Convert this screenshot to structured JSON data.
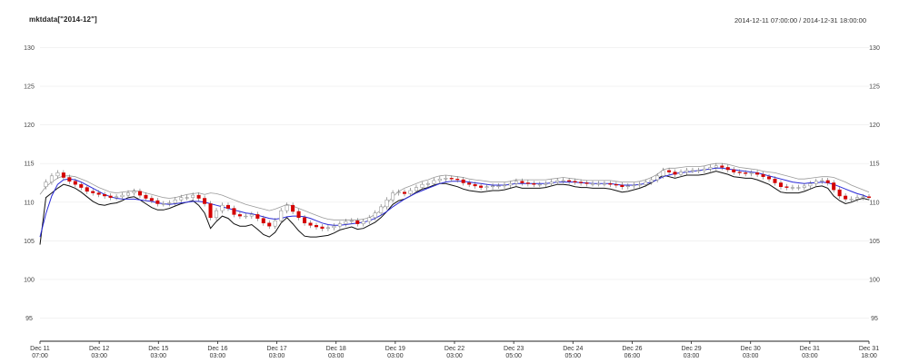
{
  "chart_data": {
    "type": "candlestick",
    "title": "mktdata[\"2014-12\"]",
    "date_range": "2014-12-11 07:00:00 / 2014-12-31 18:00:00",
    "ylim": [
      92,
      131
    ],
    "y_ticks": [
      95,
      100,
      105,
      110,
      115,
      120,
      125,
      130
    ],
    "x_ticks": [
      {
        "l1": "Dec 11",
        "l2": "07:00"
      },
      {
        "l1": "Dec 12",
        "l2": "03:00"
      },
      {
        "l1": "Dec 15",
        "l2": "03:00"
      },
      {
        "l1": "Dec 16",
        "l2": "03:00"
      },
      {
        "l1": "Dec 17",
        "l2": "03:00"
      },
      {
        "l1": "Dec 18",
        "l2": "03:00"
      },
      {
        "l1": "Dec 19",
        "l2": "03:00"
      },
      {
        "l1": "Dec 22",
        "l2": "03:00"
      },
      {
        "l1": "Dec 23",
        "l2": "05:00"
      },
      {
        "l1": "Dec 24",
        "l2": "05:00"
      },
      {
        "l1": "Dec 26",
        "l2": "06:00"
      },
      {
        "l1": "Dec 29",
        "l2": "03:00"
      },
      {
        "l1": "Dec 30",
        "l2": "03:00"
      },
      {
        "l1": "Dec 31",
        "l2": "03:00"
      },
      {
        "l1": "Dec 31",
        "l2": "18:00"
      }
    ],
    "close": [
      112,
      112.6,
      113.4,
      113.8,
      113.2,
      112.7,
      112.3,
      111.9,
      111.4,
      111.2,
      111.0,
      110.8,
      110.6,
      110.7,
      110.9,
      111.2,
      111.4,
      110.9,
      110.5,
      110.2,
      109.8,
      109.8,
      109.9,
      110.3,
      110.6,
      110.6,
      110.9,
      110.5,
      109.8,
      108.0,
      108.9,
      109.6,
      109.2,
      108.4,
      108.2,
      108.2,
      108.4,
      107.9,
      107.3,
      106.9,
      107.6,
      108.9,
      109.6,
      108.8,
      108.0,
      107.3,
      107.0,
      106.8,
      106.6,
      106.7,
      106.9,
      107.2,
      107.5,
      107.6,
      107.2,
      107.5,
      108.0,
      108.6,
      109.4,
      110.3,
      111.2,
      111.3,
      111.1,
      111.5,
      111.9,
      112.3,
      112.4,
      112.8,
      113.0,
      113.1,
      113.0,
      112.9,
      112.5,
      112.3,
      112.1,
      111.9,
      112.0,
      112.1,
      112.1,
      112.2,
      112.4,
      112.7,
      112.5,
      112.4,
      112.3,
      112.3,
      112.4,
      112.6,
      112.8,
      112.8,
      112.7,
      112.6,
      112.5,
      112.4,
      112.4,
      112.4,
      112.4,
      112.3,
      112.2,
      112.0,
      112.1,
      112.2,
      112.3,
      112.6,
      112.9,
      113.4,
      114.1,
      113.9,
      113.6,
      113.9,
      114.1,
      114.1,
      114.1,
      114.3,
      114.5,
      114.7,
      114.5,
      114.2,
      113.9,
      113.8,
      113.7,
      113.8,
      113.6,
      113.3,
      113.0,
      112.5,
      112.0,
      111.9,
      111.9,
      111.9,
      112.1,
      112.4,
      112.7,
      112.8,
      112.5,
      111.6,
      110.8,
      110.4,
      110.4,
      110.6,
      110.7,
      110.6
    ],
    "bbands": {
      "upper": [
        111,
        112,
        112.6,
        113.1,
        113.4,
        113.4,
        113.3,
        113.0,
        112.7,
        112.3,
        111.9,
        111.6,
        111.3,
        111.2,
        111.3,
        111.4,
        111.5,
        111.4,
        111.2,
        111.0,
        110.8,
        110.6,
        110.5,
        110.6,
        110.8,
        111.0,
        111.1,
        111.2,
        111.0,
        111.2,
        111.1,
        110.9,
        110.6,
        110.3,
        110.0,
        109.7,
        109.5,
        109.3,
        109.1,
        108.9,
        109.1,
        109.4,
        109.7,
        109.5,
        109.2,
        108.9,
        108.6,
        108.3,
        108.0,
        107.8,
        107.7,
        107.7,
        107.7,
        107.7,
        107.7,
        107.8,
        108.0,
        108.4,
        109.0,
        109.8,
        110.7,
        111.4,
        111.8,
        112.1,
        112.4,
        112.7,
        112.9,
        113.2,
        113.4,
        113.5,
        113.4,
        113.3,
        113.2,
        113.0,
        112.9,
        112.8,
        112.7,
        112.6,
        112.6,
        112.6,
        112.7,
        112.9,
        112.9,
        112.9,
        112.9,
        112.9,
        112.9,
        113.0,
        113.1,
        113.2,
        113.1,
        113.0,
        112.9,
        112.8,
        112.8,
        112.8,
        112.8,
        112.8,
        112.7,
        112.6,
        112.6,
        112.6,
        112.7,
        112.9,
        113.2,
        113.6,
        114.2,
        114.4,
        114.4,
        114.5,
        114.6,
        114.6,
        114.6,
        114.7,
        114.9,
        115.0,
        115.0,
        114.9,
        114.7,
        114.5,
        114.4,
        114.3,
        114.2,
        114.0,
        113.9,
        113.8,
        113.6,
        113.4,
        113.2,
        113.0,
        113.0,
        113.1,
        113.2,
        113.3,
        113.3,
        113.2,
        112.9,
        112.6,
        112.2,
        111.9,
        111.6,
        111.3
      ],
      "lower": [
        104.5,
        110.6,
        111.2,
        111.8,
        112.3,
        112.1,
        111.8,
        111.3,
        110.7,
        110.1,
        109.7,
        109.6,
        109.8,
        109.9,
        110.2,
        110.6,
        110.7,
        110.3,
        109.8,
        109.3,
        109.0,
        109.0,
        109.2,
        109.5,
        109.8,
        110.0,
        110.2,
        109.6,
        108.6,
        106.6,
        107.5,
        108.2,
        107.9,
        107.2,
        106.9,
        106.9,
        107.1,
        106.5,
        105.8,
        105.5,
        106.1,
        107.3,
        108.0,
        107.2,
        106.3,
        105.6,
        105.5,
        105.5,
        105.6,
        105.7,
        106.0,
        106.4,
        106.6,
        106.8,
        106.5,
        106.6,
        107.0,
        107.4,
        108.0,
        108.8,
        109.7,
        110.2,
        110.4,
        110.8,
        111.3,
        111.7,
        111.9,
        112.2,
        112.4,
        112.4,
        112.2,
        112.0,
        111.7,
        111.5,
        111.4,
        111.3,
        111.4,
        111.5,
        111.5,
        111.6,
        111.8,
        112.0,
        111.8,
        111.8,
        111.8,
        111.8,
        111.9,
        112.1,
        112.3,
        112.3,
        112.2,
        112.0,
        111.9,
        111.9,
        111.8,
        111.8,
        111.8,
        111.7,
        111.5,
        111.3,
        111.4,
        111.6,
        111.8,
        112.1,
        112.5,
        113.0,
        113.5,
        113.3,
        113.1,
        113.3,
        113.5,
        113.5,
        113.5,
        113.6,
        113.8,
        114.0,
        113.8,
        113.6,
        113.3,
        113.2,
        113.1,
        113.1,
        112.9,
        112.6,
        112.3,
        111.8,
        111.3,
        111.2,
        111.2,
        111.2,
        111.4,
        111.7,
        112.0,
        112.1,
        111.8,
        110.8,
        110.2,
        109.8,
        110.0,
        110.3,
        110.5,
        110.3
      ],
      "middle": [
        105.5,
        108.5,
        110.8,
        112.3,
        112.9,
        113.0,
        112.9,
        112.6,
        112.2,
        111.8,
        111.4,
        111.0,
        110.7,
        110.5,
        110.4,
        110.4,
        110.4,
        110.3,
        110.2,
        110.1,
        109.9,
        109.8,
        109.7,
        109.8,
        109.9,
        110.0,
        110.1,
        110.1,
        110.0,
        109.8,
        109.6,
        109.4,
        109.2,
        109.0,
        108.8,
        108.6,
        108.5,
        108.3,
        108.1,
        107.9,
        107.8,
        107.9,
        108.1,
        108.2,
        108.2,
        108.1,
        107.9,
        107.6,
        107.3,
        107.1,
        107.0,
        107.0,
        107.1,
        107.2,
        107.3,
        107.4,
        107.6,
        107.9,
        108.3,
        108.8,
        109.4,
        109.9,
        110.4,
        110.8,
        111.2,
        111.5,
        111.8,
        112.1,
        112.4,
        112.6,
        112.7,
        112.7,
        112.7,
        112.6,
        112.5,
        112.4,
        112.3,
        112.2,
        112.2,
        112.2,
        112.3,
        112.4,
        112.4,
        112.4,
        112.4,
        112.4,
        112.4,
        112.5,
        112.6,
        112.6,
        112.6,
        112.6,
        112.5,
        112.5,
        112.4,
        112.4,
        112.4,
        112.4,
        112.3,
        112.2,
        112.2,
        112.2,
        112.3,
        112.4,
        112.6,
        112.9,
        113.3,
        113.5,
        113.7,
        113.8,
        113.9,
        114.0,
        114.1,
        114.2,
        114.3,
        114.4,
        114.4,
        114.3,
        114.2,
        114.1,
        114.0,
        113.9,
        113.8,
        113.6,
        113.4,
        113.2,
        113.0,
        112.8,
        112.6,
        112.5,
        112.4,
        112.5,
        112.5,
        112.6,
        112.5,
        112.3,
        112.0,
        111.7,
        111.4,
        111.1,
        110.9,
        110.6
      ]
    }
  }
}
